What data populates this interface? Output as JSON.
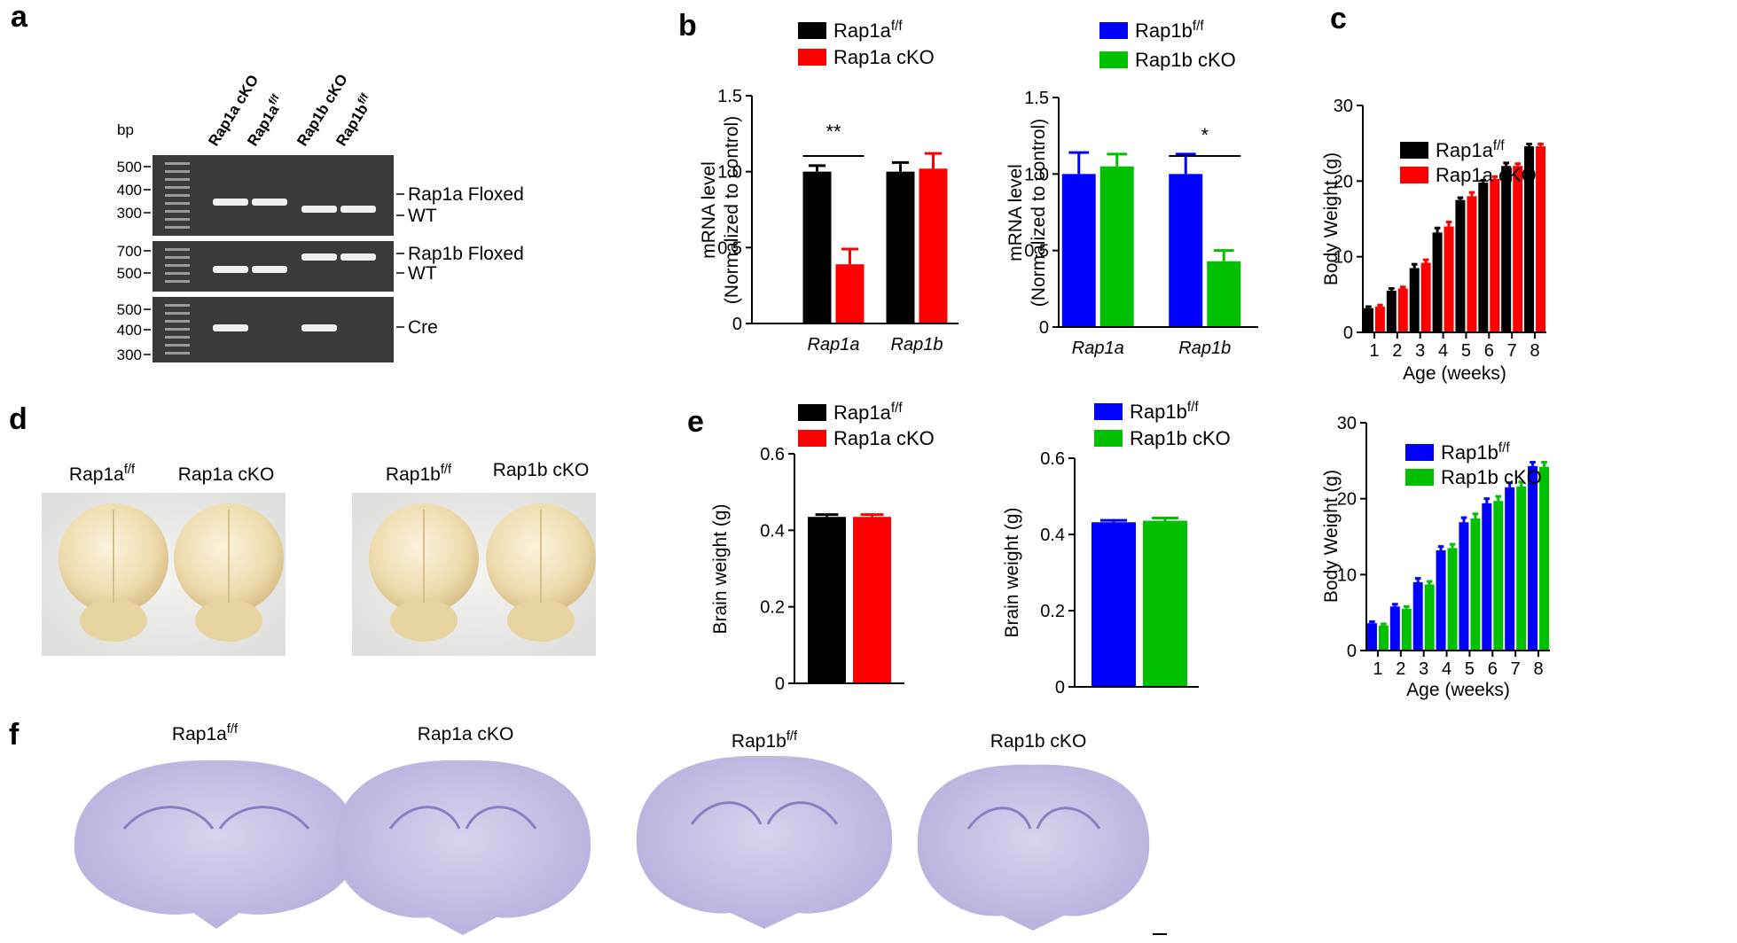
{
  "panel_letters": [
    "a",
    "b",
    "c",
    "d",
    "e",
    "f"
  ],
  "gel": {
    "bp_label": "bp",
    "lanes": [
      {
        "name": "Rap1a cKO"
      },
      {
        "name": "Rap1a",
        "name_sup": "f/f"
      },
      {
        "name": "Rap1b cKO"
      },
      {
        "name": "Rap1b",
        "name_sup": "f/f"
      }
    ],
    "panels": [
      {
        "markers": [
          500,
          400,
          300
        ],
        "bands": [
          "Rap1a Floxed",
          "WT"
        ]
      },
      {
        "markers": [
          700,
          500
        ],
        "bands": [
          "Rap1b Floxed",
          "WT"
        ]
      },
      {
        "markers": [
          500,
          400,
          300
        ],
        "bands": [
          "Cre"
        ]
      }
    ]
  },
  "photos": {
    "labels": [
      {
        "name": "Rap1a",
        "name_sup": "f/f"
      },
      {
        "name": "Rap1a cKO"
      },
      {
        "name": "Rap1b",
        "name_sup": "f/f"
      },
      {
        "name": "Rap1b cKO"
      }
    ]
  },
  "sections": {
    "labels": [
      {
        "name": "Rap1a",
        "name_sup": "f/f"
      },
      {
        "name": "Rap1a cKO"
      },
      {
        "name": "Rap1b",
        "name_sup": "f/f"
      },
      {
        "name": "Rap1b cKO"
      }
    ]
  },
  "chart_data": [
    {
      "type": "bar",
      "categories": [
        "Rap1a",
        "Rap1b"
      ],
      "italic_categories": true,
      "ylabel": [
        "mRNA level",
        "(Normalized to control)"
      ],
      "ylim": [
        0,
        1.5
      ],
      "yticks": [
        0,
        0.5,
        {
          "value": 1,
          "label": "1.0"
        },
        1.5
      ],
      "annotation": "**",
      "series": [
        {
          "name": "Rap1a",
          "name_sup": "f/f",
          "color": "#000000",
          "values": [
            1.0,
            1.0
          ],
          "errors": [
            0.04,
            0.06
          ]
        },
        {
          "name": "Rap1a cKO",
          "color": "#ff0000",
          "values": [
            0.39,
            1.02
          ],
          "errors": [
            0.1,
            0.1
          ]
        }
      ]
    },
    {
      "type": "bar",
      "categories": [
        "Rap1a",
        "Rap1b"
      ],
      "italic_categories": true,
      "ylabel": [
        "mRNA level",
        "(Normalized to control)"
      ],
      "ylim": [
        0,
        1.5
      ],
      "yticks": [
        0,
        0.5,
        {
          "value": 1,
          "label": "1.0"
        },
        1.5
      ],
      "annotation": "*",
      "series": [
        {
          "name": "Rap1b",
          "name_sup": "f/f",
          "color": "#0000ff",
          "values": [
            1.0,
            1.0
          ],
          "errors": [
            0.14,
            0.13
          ]
        },
        {
          "name": "Rap1b cKO",
          "color": "#00c000",
          "values": [
            1.05,
            0.43
          ],
          "errors": [
            0.08,
            0.07
          ]
        }
      ]
    },
    {
      "type": "bar",
      "x": [
        1,
        2,
        3,
        4,
        5,
        6,
        7,
        8
      ],
      "xlim": [
        0.5,
        8.5
      ],
      "xlabel": "Age (weeks)",
      "ylabel": [
        "Body Weight (g)"
      ],
      "ylim": [
        0,
        30
      ],
      "yticks": [
        0,
        10,
        20,
        30
      ],
      "series": [
        {
          "name": "Rap1a",
          "name_sup": "f/f",
          "color": "#000000",
          "values": [
            3.2,
            5.5,
            8.5,
            13.2,
            17.5,
            19.8,
            22.0,
            24.6
          ],
          "errors": [
            0.2,
            0.3,
            0.5,
            0.6,
            0.3,
            0.3,
            0.4,
            0.3
          ]
        },
        {
          "name": "Rap1a cKO",
          "color": "#ff0000",
          "values": [
            3.4,
            5.8,
            9.2,
            14.0,
            18.0,
            20.3,
            22.0,
            24.6
          ],
          "errors": [
            0.2,
            0.2,
            0.4,
            0.6,
            0.5,
            0.3,
            0.3,
            0.3
          ]
        }
      ]
    },
    {
      "type": "bar",
      "x": [
        1,
        2,
        3,
        4,
        5,
        6,
        7,
        8
      ],
      "xlim": [
        0.5,
        8.5
      ],
      "xlabel": "Age (weeks)",
      "ylabel": [
        "Body Weight (g)"
      ],
      "ylim": [
        0,
        30
      ],
      "yticks": [
        0,
        10,
        20,
        30
      ],
      "series": [
        {
          "name": "Rap1b",
          "name_sup": "f/f",
          "color": "#0000ff",
          "values": [
            3.6,
            5.8,
            9.0,
            13.2,
            16.9,
            19.4,
            21.5,
            24.3
          ],
          "errors": [
            0.2,
            0.3,
            0.5,
            0.5,
            0.6,
            0.6,
            0.6,
            0.5
          ]
        },
        {
          "name": "Rap1b cKO",
          "color": "#00c000",
          "values": [
            3.3,
            5.5,
            8.7,
            13.5,
            17.4,
            19.7,
            21.6,
            24.2
          ],
          "errors": [
            0.2,
            0.3,
            0.4,
            0.5,
            0.6,
            0.6,
            0.6,
            0.6
          ]
        }
      ]
    },
    {
      "type": "bar",
      "ylabel": [
        "Brain weight (g)"
      ],
      "ylim": [
        0,
        0.6
      ],
      "yticks": [
        0,
        0.2,
        0.4,
        0.6
      ],
      "series": [
        {
          "name": "Rap1a",
          "name_sup": "f/f",
          "color": "#000000",
          "values": [
            0.435
          ],
          "errors": [
            0.006
          ]
        },
        {
          "name": "Rap1a cKO",
          "color": "#ff0000",
          "values": [
            0.435
          ],
          "errors": [
            0.006
          ]
        }
      ]
    },
    {
      "type": "bar",
      "ylabel": [
        "Brain weight (g)"
      ],
      "ylim": [
        0,
        0.6
      ],
      "yticks": [
        0,
        0.2,
        0.4,
        0.6
      ],
      "series": [
        {
          "name": "Rap1b",
          "name_sup": "f/f",
          "color": "#0000ff",
          "values": [
            0.432
          ],
          "errors": [
            0.005
          ]
        },
        {
          "name": "Rap1b cKO",
          "color": "#00c000",
          "values": [
            0.436
          ],
          "errors": [
            0.007
          ]
        }
      ]
    }
  ]
}
